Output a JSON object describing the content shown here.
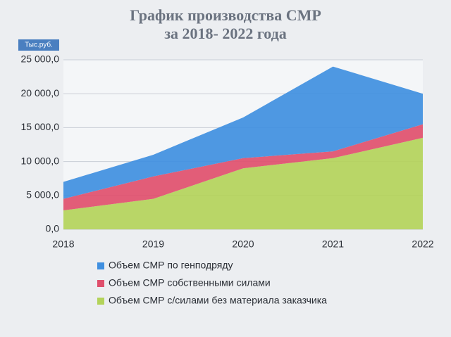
{
  "chart_data": {
    "type": "area",
    "title": "График производства СМР",
    "subtitle": "за  2018- 2022 года",
    "y_label": "Тыс.руб.",
    "categories": [
      "2018",
      "2019",
      "2020",
      "2021",
      "2022"
    ],
    "stacked": true,
    "series": [
      {
        "name": "Объем СМР с/силами без материала заказчика",
        "color": "#b3d35a",
        "values": [
          2800,
          4500,
          9000,
          10500,
          13500
        ]
      },
      {
        "name": "Объем СМР собственными силами",
        "color": "#df4f6c",
        "values": [
          1700,
          3300,
          1500,
          1000,
          2000
        ]
      },
      {
        "name": "Объем СМР по генподряду",
        "color": "#3f8fe0",
        "values": [
          2500,
          3200,
          6000,
          12500,
          4500
        ]
      }
    ],
    "ylim": [
      0,
      25000
    ],
    "yticks": [
      {
        "value": 0,
        "label": "0,0"
      },
      {
        "value": 5000,
        "label": "5 000,0"
      },
      {
        "value": 10000,
        "label": "10 000,0"
      },
      {
        "value": 15000,
        "label": "15 000,0"
      },
      {
        "value": 20000,
        "label": "20 000,0"
      },
      {
        "value": 25000,
        "label": "25 000,0"
      }
    ],
    "grid": true
  }
}
